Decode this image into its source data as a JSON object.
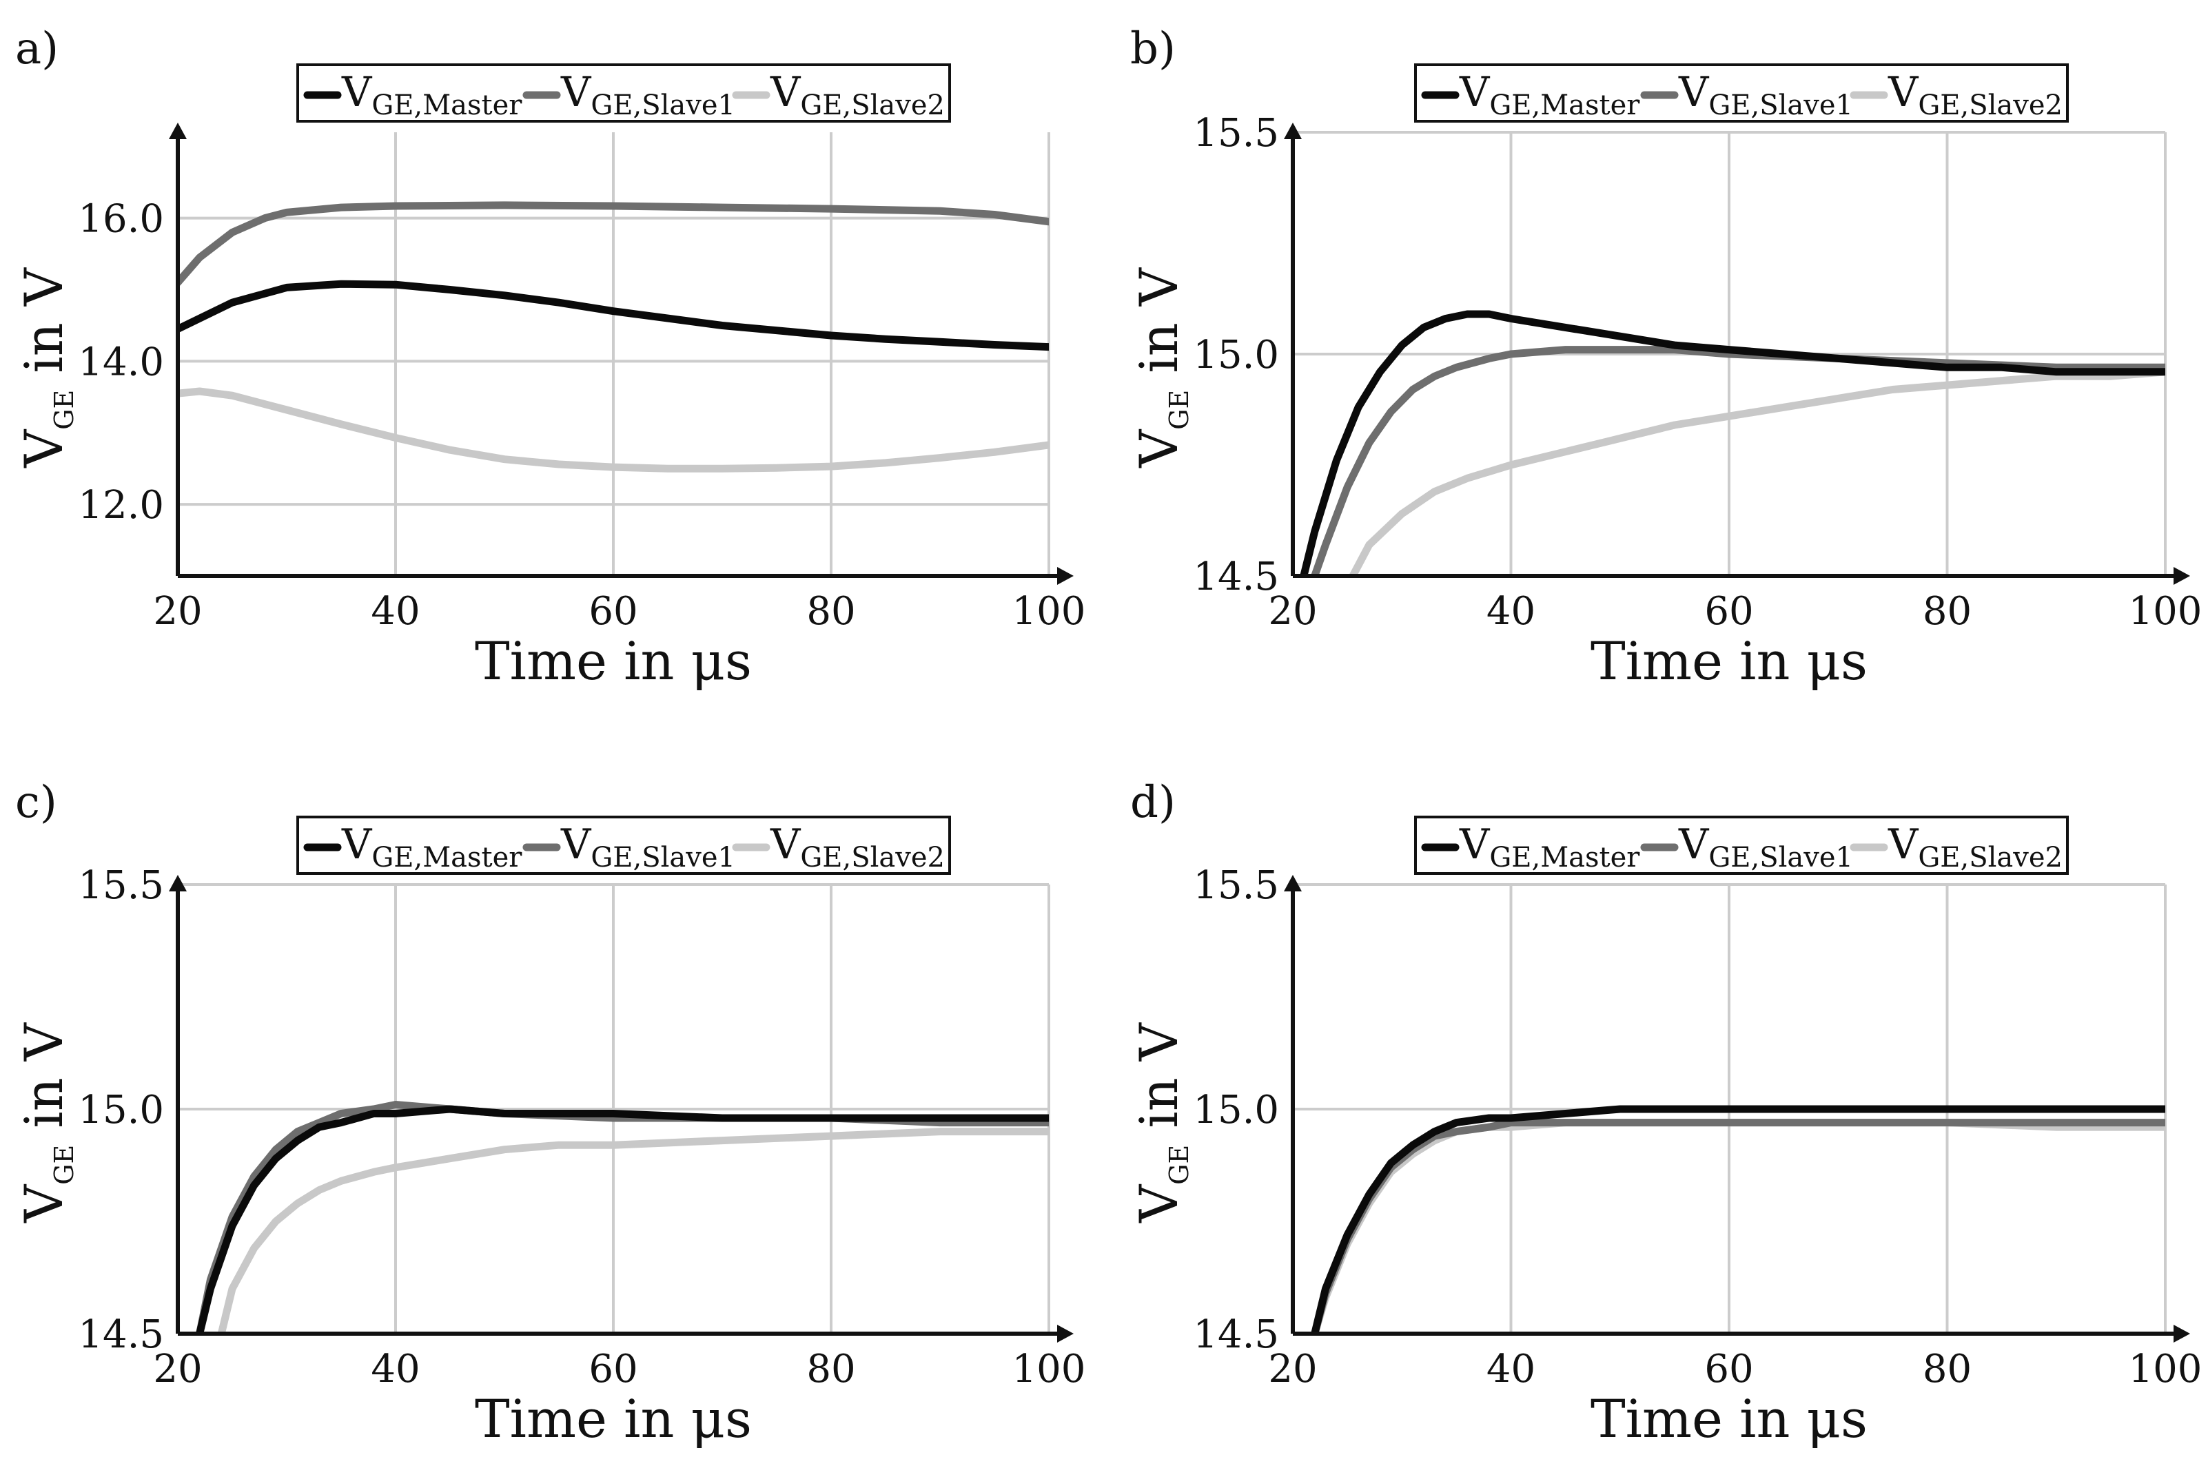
{
  "figure": {
    "description_labels": [
      "a)",
      "b)",
      "c)",
      "d)"
    ]
  },
  "legend": {
    "prefix": "V",
    "items": [
      {
        "name": "V_GE,Master",
        "sub": "GE,Master",
        "color": "#0a0a0a"
      },
      {
        "name": "V_GE,Slave1",
        "sub": "GE,Slave1",
        "color": "#6e6e6e"
      },
      {
        "name": "V_GE,Slave2",
        "sub": "GE,Slave2",
        "color": "#c8c8c8"
      }
    ]
  },
  "axes_text": {
    "xlabel": "Time in μs",
    "ylabel_main": "V",
    "ylabel_sub": "GE",
    "ylabel_tail": " in V"
  },
  "chart_data": [
    {
      "panel": "a)",
      "type": "line",
      "xlabel": "Time in μs",
      "ylabel": "V_GE in V",
      "xlim": [
        20,
        100
      ],
      "ylim": [
        11,
        17.2
      ],
      "xticks": [
        20,
        40,
        60,
        80,
        100
      ],
      "yticks": [
        12.0,
        14.0,
        16.0
      ],
      "ytick_labels": [
        "12.0",
        "14.0",
        "16.0"
      ],
      "grid": true,
      "legend_position": "top",
      "series": [
        {
          "name": "V_GE,Master",
          "x": [
            20,
            25,
            30,
            35,
            40,
            45,
            50,
            55,
            60,
            65,
            70,
            75,
            80,
            85,
            90,
            95,
            100
          ],
          "y": [
            14.45,
            14.82,
            15.03,
            15.08,
            15.07,
            15.0,
            14.92,
            14.82,
            14.7,
            14.6,
            14.5,
            14.43,
            14.36,
            14.31,
            14.27,
            14.23,
            14.2
          ]
        },
        {
          "name": "V_GE,Slave1",
          "x": [
            20,
            22,
            25,
            28,
            30,
            35,
            40,
            50,
            60,
            70,
            80,
            90,
            95,
            100
          ],
          "y": [
            15.1,
            15.45,
            15.8,
            16.0,
            16.08,
            16.15,
            16.17,
            16.18,
            16.17,
            16.15,
            16.13,
            16.1,
            16.05,
            15.95
          ]
        },
        {
          "name": "V_GE,Slave2",
          "x": [
            20,
            22,
            25,
            30,
            35,
            40,
            45,
            50,
            55,
            60,
            65,
            70,
            75,
            80,
            85,
            90,
            95,
            100
          ],
          "y": [
            13.55,
            13.58,
            13.52,
            13.32,
            13.12,
            12.93,
            12.76,
            12.63,
            12.56,
            12.52,
            12.5,
            12.5,
            12.51,
            12.53,
            12.58,
            12.65,
            12.73,
            12.83
          ]
        }
      ]
    },
    {
      "panel": "b)",
      "type": "line",
      "xlabel": "Time in μs",
      "ylabel": "V_GE in V",
      "xlim": [
        20,
        100
      ],
      "ylim": [
        14.5,
        15.5
      ],
      "xticks": [
        20,
        40,
        60,
        80,
        100
      ],
      "yticks": [
        14.5,
        15.0,
        15.5
      ],
      "ytick_labels": [
        "14.5",
        "15.0",
        "15.5"
      ],
      "grid": true,
      "legend_position": "top",
      "series": [
        {
          "name": "V_GE,Master",
          "x": [
            21,
            22,
            24,
            26,
            28,
            30,
            32,
            34,
            36,
            38,
            40,
            45,
            50,
            55,
            60,
            65,
            70,
            75,
            80,
            85,
            90,
            95,
            100
          ],
          "y": [
            14.5,
            14.6,
            14.76,
            14.88,
            14.96,
            15.02,
            15.06,
            15.08,
            15.09,
            15.09,
            15.08,
            15.06,
            15.04,
            15.02,
            15.01,
            15.0,
            14.99,
            14.98,
            14.97,
            14.97,
            14.96,
            14.96,
            14.96
          ]
        },
        {
          "name": "V_GE,Slave1",
          "x": [
            22,
            23,
            25,
            27,
            29,
            31,
            33,
            35,
            38,
            40,
            45,
            50,
            55,
            60,
            70,
            80,
            90,
            100
          ],
          "y": [
            14.5,
            14.57,
            14.7,
            14.8,
            14.87,
            14.92,
            14.95,
            14.97,
            14.99,
            15.0,
            15.01,
            15.01,
            15.01,
            15.0,
            14.99,
            14.98,
            14.97,
            14.97
          ]
        },
        {
          "name": "V_GE,Slave2",
          "x": [
            25.5,
            27,
            30,
            33,
            36,
            40,
            45,
            50,
            55,
            60,
            65,
            70,
            75,
            80,
            85,
            90,
            95,
            100
          ],
          "y": [
            14.5,
            14.57,
            14.64,
            14.69,
            14.72,
            14.75,
            14.78,
            14.81,
            14.84,
            14.86,
            14.88,
            14.9,
            14.92,
            14.93,
            14.94,
            14.95,
            14.95,
            14.96
          ]
        }
      ]
    },
    {
      "panel": "c)",
      "type": "line",
      "xlabel": "Time in μs",
      "ylabel": "V_GE in V",
      "xlim": [
        20,
        100
      ],
      "ylim": [
        14.5,
        15.5
      ],
      "xticks": [
        20,
        40,
        60,
        80,
        100
      ],
      "yticks": [
        14.5,
        15.0,
        15.5
      ],
      "ytick_labels": [
        "14.5",
        "15.0",
        "15.5"
      ],
      "grid": true,
      "legend_position": "top",
      "series": [
        {
          "name": "V_GE,Master",
          "x": [
            22,
            23,
            25,
            27,
            29,
            31,
            33,
            35,
            38,
            40,
            45,
            50,
            60,
            70,
            80,
            90,
            100
          ],
          "y": [
            14.5,
            14.6,
            14.74,
            14.83,
            14.89,
            14.93,
            14.96,
            14.97,
            14.99,
            14.99,
            15.0,
            14.99,
            14.99,
            14.98,
            14.98,
            14.98,
            14.98
          ]
        },
        {
          "name": "V_GE,Slave1",
          "x": [
            22,
            23,
            25,
            27,
            29,
            31,
            33,
            35,
            38,
            40,
            45,
            50,
            60,
            70,
            80,
            90,
            100
          ],
          "y": [
            14.5,
            14.62,
            14.76,
            14.85,
            14.91,
            14.95,
            14.97,
            14.99,
            15.0,
            15.01,
            15.0,
            14.99,
            14.98,
            14.98,
            14.98,
            14.97,
            14.97
          ]
        },
        {
          "name": "V_GE,Slave2",
          "x": [
            24,
            25,
            27,
            29,
            31,
            33,
            35,
            38,
            40,
            45,
            50,
            55,
            60,
            70,
            80,
            90,
            100
          ],
          "y": [
            14.5,
            14.6,
            14.69,
            14.75,
            14.79,
            14.82,
            14.84,
            14.86,
            14.87,
            14.89,
            14.91,
            14.92,
            14.92,
            14.93,
            14.94,
            14.95,
            14.95
          ]
        }
      ]
    },
    {
      "panel": "d)",
      "type": "line",
      "xlabel": "Time in μs",
      "ylabel": "V_GE in V",
      "xlim": [
        20,
        100
      ],
      "ylim": [
        14.5,
        15.5
      ],
      "xticks": [
        20,
        40,
        60,
        80,
        100
      ],
      "yticks": [
        14.5,
        15.0,
        15.5
      ],
      "ytick_labels": [
        "14.5",
        "15.0",
        "15.5"
      ],
      "grid": true,
      "legend_position": "top",
      "series": [
        {
          "name": "V_GE,Master",
          "x": [
            22,
            23,
            25,
            27,
            29,
            31,
            33,
            35,
            38,
            40,
            45,
            50,
            60,
            70,
            80,
            90,
            100
          ],
          "y": [
            14.5,
            14.6,
            14.72,
            14.81,
            14.88,
            14.92,
            14.95,
            14.97,
            14.98,
            14.98,
            14.99,
            15.0,
            15.0,
            15.0,
            15.0,
            15.0,
            15.0
          ]
        },
        {
          "name": "V_GE,Slave1",
          "x": [
            22,
            23,
            25,
            27,
            29,
            31,
            33,
            35,
            38,
            40,
            45,
            50,
            60,
            70,
            80,
            90,
            100
          ],
          "y": [
            14.5,
            14.59,
            14.71,
            14.8,
            14.87,
            14.91,
            14.94,
            14.95,
            14.96,
            14.97,
            14.97,
            14.97,
            14.97,
            14.97,
            14.97,
            14.97,
            14.97
          ]
        },
        {
          "name": "V_GE,Slave2",
          "x": [
            22,
            23,
            25,
            27,
            29,
            31,
            33,
            35,
            38,
            40,
            45,
            50,
            60,
            70,
            80,
            90,
            100
          ],
          "y": [
            14.5,
            14.58,
            14.7,
            14.79,
            14.86,
            14.9,
            14.93,
            14.95,
            14.96,
            14.96,
            14.97,
            14.97,
            14.97,
            14.97,
            14.97,
            14.96,
            14.96
          ]
        }
      ]
    }
  ]
}
